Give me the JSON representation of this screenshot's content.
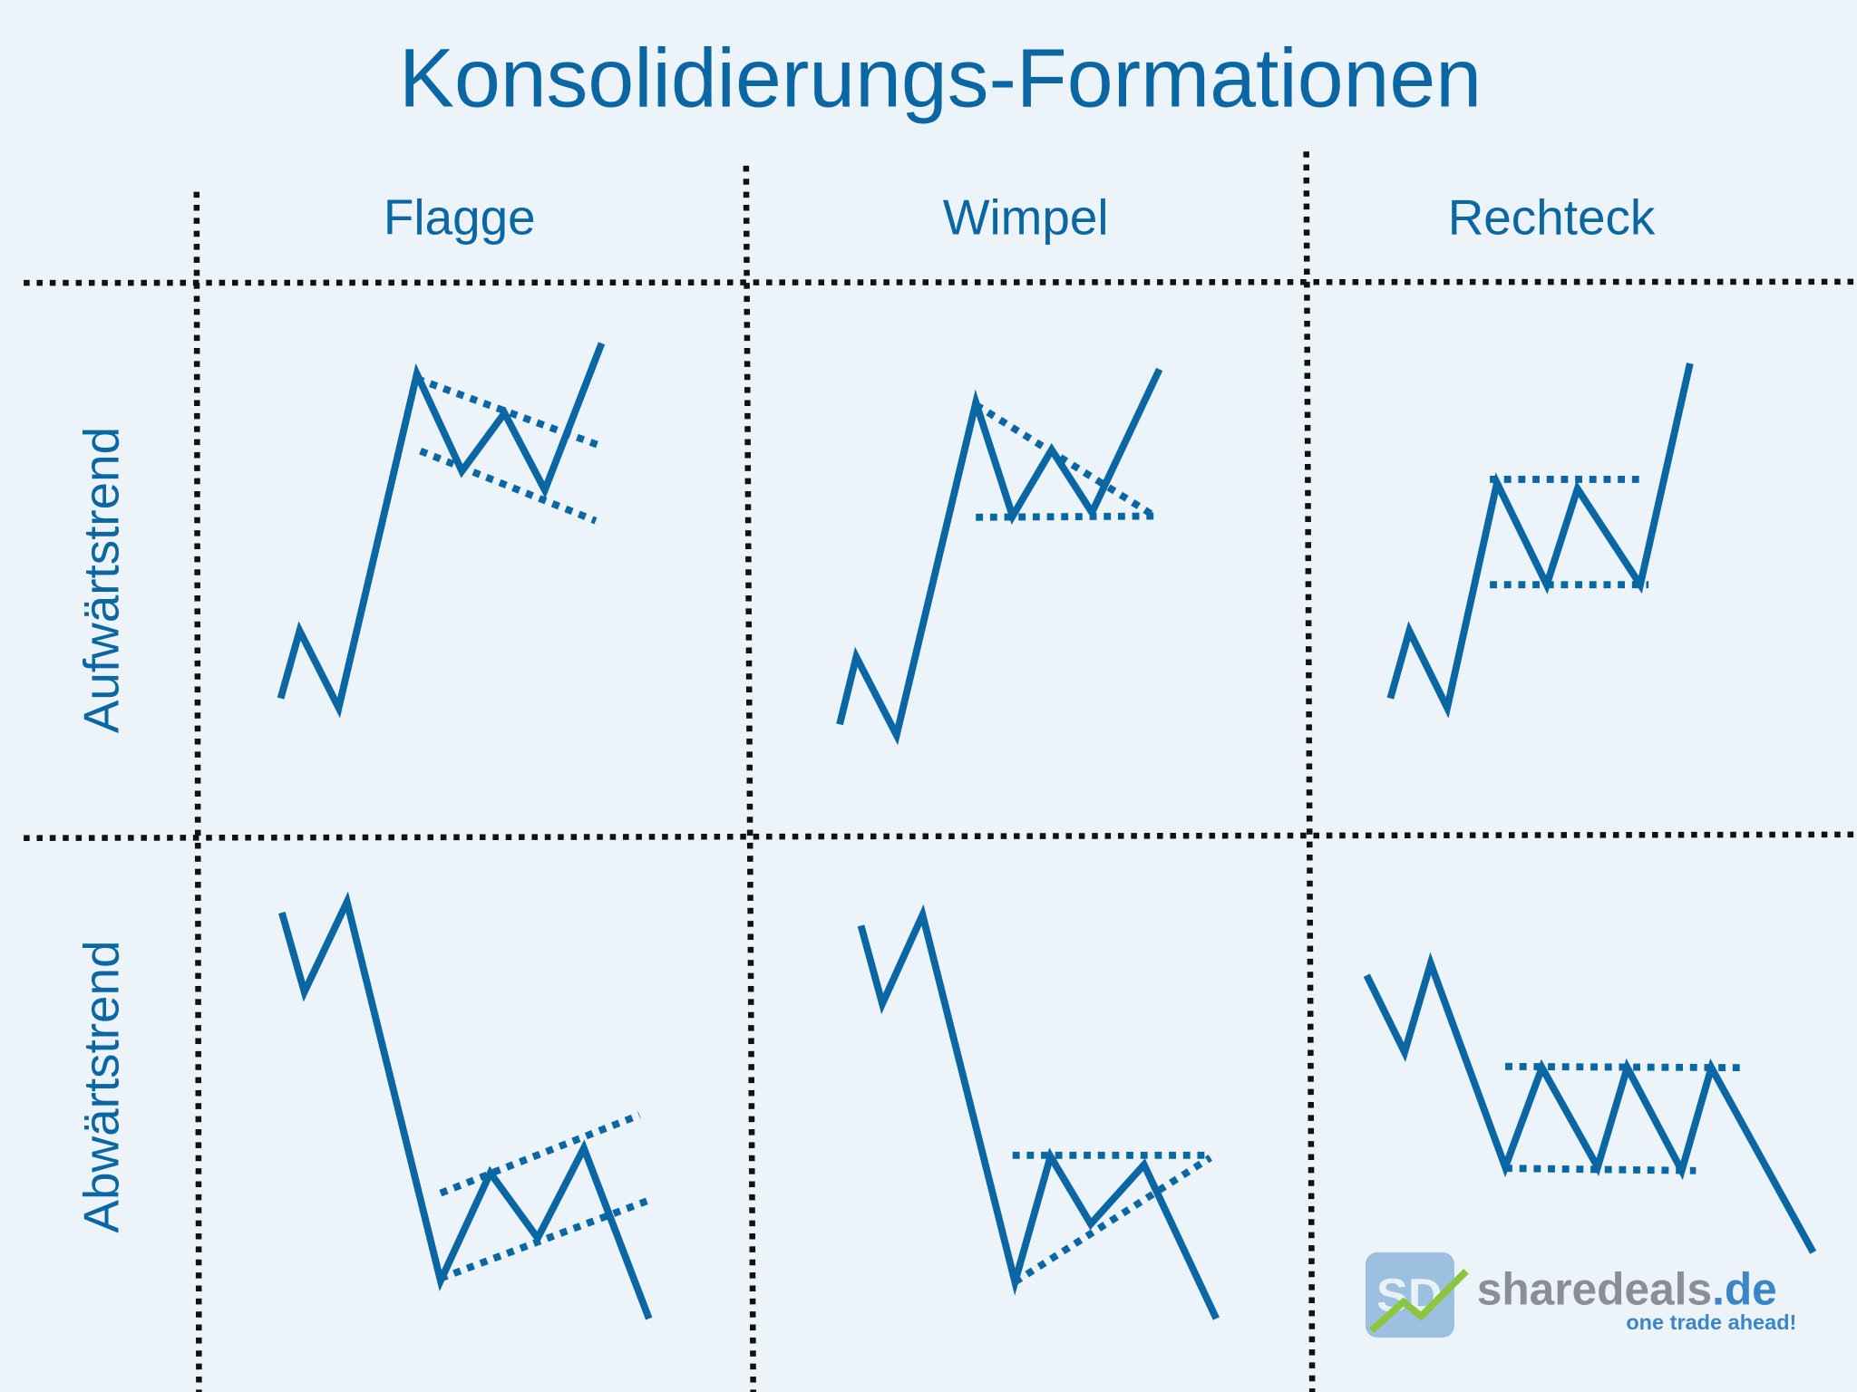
{
  "title": "Konsolidierungs-Formationen",
  "columns": [
    "Flagge",
    "Wimpel",
    "Rechteck"
  ],
  "rows": [
    "Aufwärtstrend",
    "Abwärtstrend"
  ],
  "logo": {
    "mark": "SD",
    "name": "sharedeals",
    "tld": ".de",
    "tagline": "one trade ahead!"
  }
}
